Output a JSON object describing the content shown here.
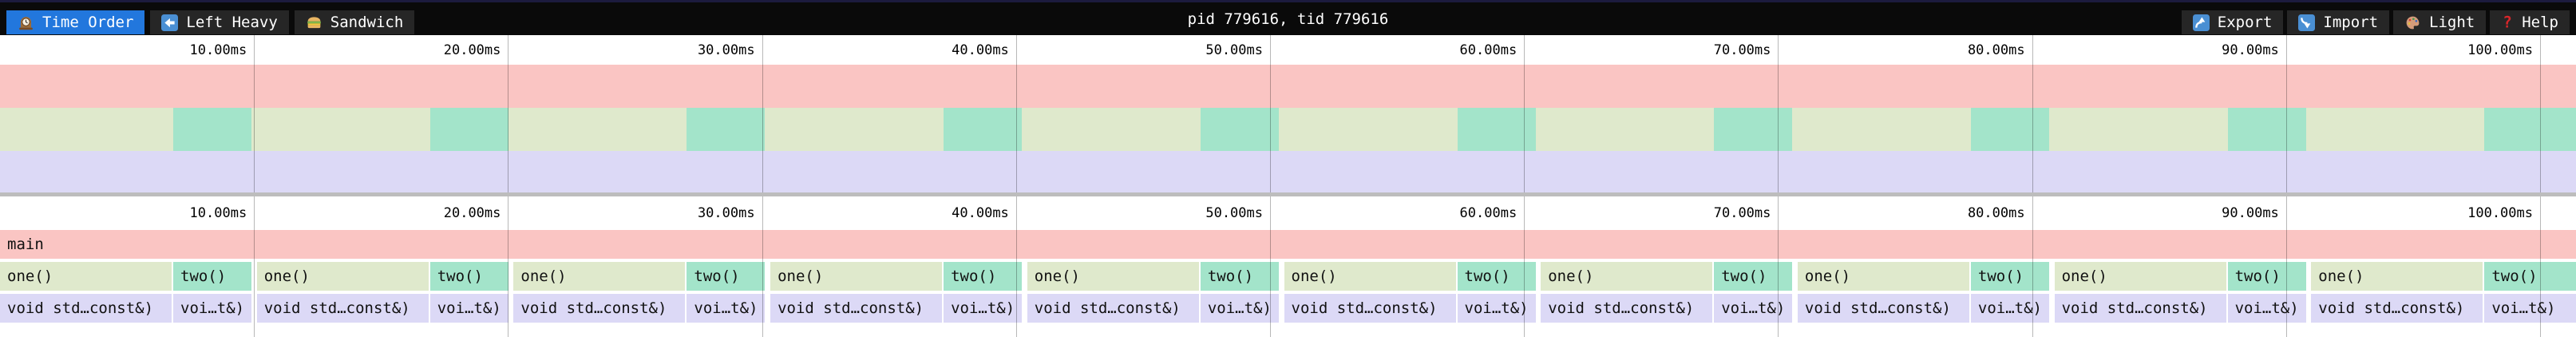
{
  "header": {
    "title": "pid 779616, tid 779616",
    "tabs": [
      {
        "id": "time-order",
        "icon": "clock-icon",
        "label": "Time Order",
        "active": true
      },
      {
        "id": "left-heavy",
        "icon": "left-arrow-icon",
        "label": "Left Heavy",
        "active": false
      },
      {
        "id": "sandwich",
        "icon": "sandwich-icon",
        "label": "Sandwich",
        "active": false
      }
    ],
    "actions": [
      {
        "id": "export",
        "icon": "export-icon",
        "label": "Export"
      },
      {
        "id": "import",
        "icon": "import-icon",
        "label": "Import"
      },
      {
        "id": "theme",
        "icon": "palette-icon",
        "label": "Light"
      },
      {
        "id": "help",
        "icon": "help-icon",
        "label": "Help"
      }
    ]
  },
  "colors": {
    "frame_main": "#fac5c3",
    "frame_one": "#dfe9cc",
    "frame_two": "#a3e4ca",
    "frame_depth2": "#dcd9f6",
    "tab_active": "#2277dd",
    "divider": "#bdbdbd",
    "topbar_strip": "#1c1b3e"
  },
  "timeline": {
    "view_start_ms": 0,
    "view_end_ms": 101.43,
    "ticks": [
      {
        "ms": 10,
        "label": "10.00ms"
      },
      {
        "ms": 20,
        "label": "20.00ms"
      },
      {
        "ms": 30,
        "label": "30.00ms"
      },
      {
        "ms": 40,
        "label": "40.00ms"
      },
      {
        "ms": 50,
        "label": "50.00ms"
      },
      {
        "ms": 60,
        "label": "60.00ms"
      },
      {
        "ms": 70,
        "label": "70.00ms"
      },
      {
        "ms": 80,
        "label": "80.00ms"
      },
      {
        "ms": 90,
        "label": "90.00ms"
      },
      {
        "ms": 100,
        "label": "100.00ms"
      }
    ]
  },
  "flamegraph": {
    "depth0": [
      {
        "label": "main",
        "type": "main",
        "start_ms": 0,
        "end_ms": 101.43
      }
    ],
    "depth1": [
      {
        "label": "one()",
        "type": "one",
        "start_ms": 0.0,
        "end_ms": 6.76
      },
      {
        "label": "two()",
        "type": "two",
        "start_ms": 6.82,
        "end_ms": 9.9
      },
      {
        "label": "one()",
        "type": "one",
        "start_ms": 10.11,
        "end_ms": 16.87
      },
      {
        "label": "two()",
        "type": "two",
        "start_ms": 16.93,
        "end_ms": 20.01
      },
      {
        "label": "one()",
        "type": "one",
        "start_ms": 20.22,
        "end_ms": 26.98
      },
      {
        "label": "two()",
        "type": "two",
        "start_ms": 27.04,
        "end_ms": 30.12
      },
      {
        "label": "one()",
        "type": "one",
        "start_ms": 30.33,
        "end_ms": 37.09
      },
      {
        "label": "two()",
        "type": "two",
        "start_ms": 37.15,
        "end_ms": 40.23
      },
      {
        "label": "one()",
        "type": "one",
        "start_ms": 40.44,
        "end_ms": 47.2
      },
      {
        "label": "two()",
        "type": "two",
        "start_ms": 47.26,
        "end_ms": 50.34
      },
      {
        "label": "one()",
        "type": "one",
        "start_ms": 50.55,
        "end_ms": 57.31
      },
      {
        "label": "two()",
        "type": "two",
        "start_ms": 57.37,
        "end_ms": 60.45
      },
      {
        "label": "one()",
        "type": "one",
        "start_ms": 60.66,
        "end_ms": 67.42
      },
      {
        "label": "two()",
        "type": "two",
        "start_ms": 67.48,
        "end_ms": 70.56
      },
      {
        "label": "one()",
        "type": "one",
        "start_ms": 70.77,
        "end_ms": 77.53
      },
      {
        "label": "two()",
        "type": "two",
        "start_ms": 77.59,
        "end_ms": 80.67
      },
      {
        "label": "one()",
        "type": "one",
        "start_ms": 80.88,
        "end_ms": 87.64
      },
      {
        "label": "two()",
        "type": "two",
        "start_ms": 87.7,
        "end_ms": 90.78
      },
      {
        "label": "one()",
        "type": "one",
        "start_ms": 90.99,
        "end_ms": 97.75
      },
      {
        "label": "two()",
        "type": "two",
        "start_ms": 97.81,
        "end_ms": 101.43
      }
    ],
    "depth2_labels": {
      "one": "void std…const&)",
      "two": "voi…t&)"
    }
  }
}
